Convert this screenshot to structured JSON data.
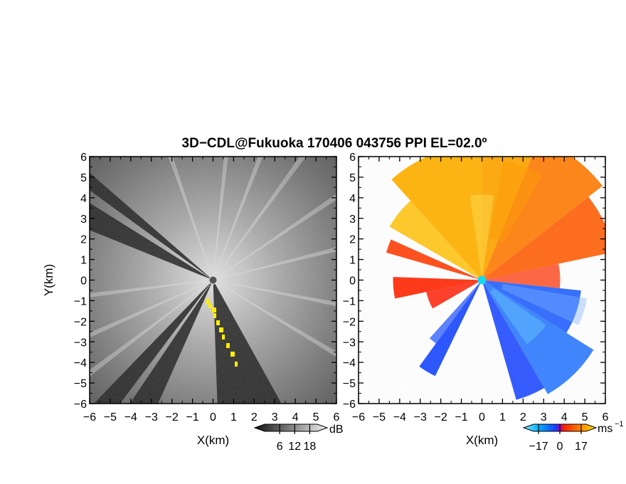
{
  "figure": {
    "title": "3D−CDL@Fukuoka 170406 043756 PPI EL=02.0º"
  },
  "colors": {
    "background": "#ffffff",
    "echo_low": "#2a2a2a",
    "echo_high": "#e8e8e8",
    "echo_marker": "#ffee00",
    "vel_negative_far": "#00c0ff",
    "vel_negative": "#1e5aff",
    "vel_zero_pos": "#ff2000",
    "vel_positive": "#ff8000",
    "vel_positive_far": "#ffd000"
  },
  "chart_data": [
    {
      "type": "heatmap",
      "panel": "reflectivity",
      "xlabel": "X(km)",
      "ylabel": "Y(km)",
      "xlim": [
        -6,
        6
      ],
      "ylim": [
        -6,
        6
      ],
      "x_ticks": [
        "−6",
        "−5",
        "−4",
        "−3",
        "−2",
        "−1",
        "0",
        "1",
        "2",
        "3",
        "4",
        "5",
        "6"
      ],
      "y_ticks": [
        "6",
        "5",
        "4",
        "3",
        "2",
        "1",
        "0",
        "−1",
        "−2",
        "−3",
        "−4",
        "−5",
        "−6"
      ],
      "colorbar": {
        "unit": "dB",
        "min": 0,
        "max": 21,
        "tick_labels": [
          "6",
          "12",
          "18"
        ],
        "tick_values": [
          6,
          12,
          18
        ],
        "colormap": "gray"
      },
      "grid": false
    },
    {
      "type": "heatmap",
      "panel": "radial_velocity",
      "xlabel": "X(km)",
      "ylabel": "",
      "xlim": [
        -6,
        6
      ],
      "ylim": [
        -6,
        6
      ],
      "x_ticks": [
        "−6",
        "−5",
        "−4",
        "−3",
        "−2",
        "−1",
        "0",
        "1",
        "2",
        "3",
        "4",
        "5",
        "6"
      ],
      "y_ticks": [
        "6",
        "5",
        "4",
        "3",
        "2",
        "1",
        "0",
        "−1",
        "−2",
        "−3",
        "−4",
        "−5",
        "−6"
      ],
      "colorbar": {
        "unit": "ms",
        "unit_exponent": "−1",
        "min": -21,
        "max": 21,
        "tick_labels": [
          "−17",
          "0",
          "17"
        ],
        "tick_values": [
          -17,
          0,
          17
        ],
        "colormap": "blue-red-yellow"
      },
      "grid": false
    }
  ]
}
